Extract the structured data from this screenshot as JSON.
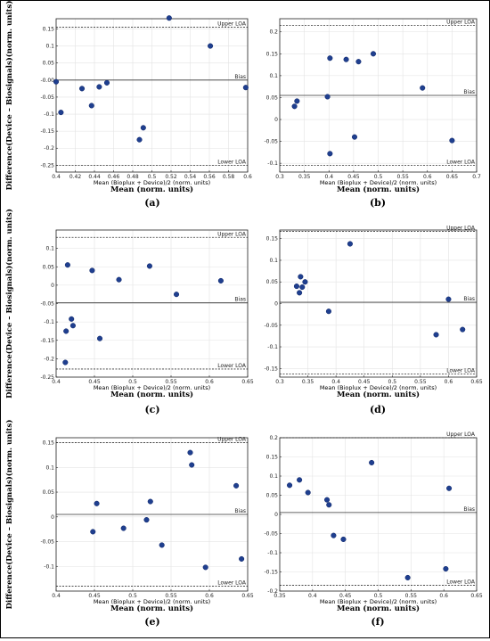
{
  "y_axis_title": "Difference(Device – Biosignals)(norm. units)",
  "x_axis_subtitle": "Mean (Bioplux + Device)/2 (norm. units)",
  "x_axis_title": "Mean (norm. units)",
  "ref_labels": {
    "upper": "Upper LOA",
    "bias": "Bias",
    "lower": "Lower LOA"
  },
  "chart_data": [
    {
      "type": "scatter",
      "panel": "(a)",
      "xlim": [
        0.4,
        0.6
      ],
      "ylim": [
        -0.27,
        0.18
      ],
      "xticks": [
        0.4,
        0.42,
        0.44,
        0.46,
        0.48,
        0.5,
        0.52,
        0.54,
        0.56,
        0.58,
        0.6
      ],
      "xtick_labels": [
        "0.4",
        "0.42",
        "0.44",
        "0.46",
        "0.48",
        "0.5",
        "0.52",
        "0.54",
        "0.56",
        "0.58",
        "0.6"
      ],
      "yticks": [
        -0.25,
        -0.2,
        -0.15,
        -0.1,
        -0.05,
        0.0,
        0.05,
        0.1,
        0.15
      ],
      "ytick_labels": [
        "-0.25",
        "-0.2",
        "-0.15",
        "-0.1",
        "-0.05",
        "-0.00",
        "0.05",
        "0.1",
        "0.15"
      ],
      "upper_loa": 0.155,
      "bias": 0.0,
      "lower_loa": -0.25,
      "grid": true,
      "x": [
        0.4,
        0.405,
        0.427,
        0.437,
        0.445,
        0.453,
        0.487,
        0.491,
        0.518,
        0.561,
        0.598
      ],
      "y": [
        -0.005,
        -0.095,
        -0.025,
        -0.075,
        -0.02,
        -0.008,
        -0.175,
        -0.14,
        0.182,
        0.1,
        -0.022
      ]
    },
    {
      "type": "scatter",
      "panel": "(b)",
      "xlim": [
        0.3,
        0.7
      ],
      "ylim": [
        -0.12,
        0.23
      ],
      "xticks": [
        0.3,
        0.35,
        0.4,
        0.45,
        0.5,
        0.55,
        0.6,
        0.65,
        0.7
      ],
      "xtick_labels": [
        "0.3",
        "0.35",
        "0.4",
        "0.45",
        "0.5",
        "0.55",
        "0.6",
        "0.65",
        "0.7"
      ],
      "yticks": [
        -0.1,
        -0.05,
        0.0,
        0.05,
        0.1,
        0.15,
        0.2
      ],
      "ytick_labels": [
        "-0.1",
        "-0.05",
        "0",
        "0.05",
        "0.1",
        "0.15",
        "0.2"
      ],
      "upper_loa": 0.215,
      "bias": 0.055,
      "lower_loa": -0.105,
      "grid": true,
      "x": [
        0.33,
        0.335,
        0.397,
        0.402,
        0.402,
        0.435,
        0.452,
        0.46,
        0.49,
        0.59,
        0.65
      ],
      "y": [
        0.03,
        0.042,
        0.052,
        0.14,
        -0.078,
        0.137,
        -0.04,
        0.132,
        0.15,
        0.072,
        -0.048
      ]
    },
    {
      "type": "scatter",
      "panel": "(c)",
      "xlim": [
        0.4,
        0.65
      ],
      "ylim": [
        -0.25,
        0.15
      ],
      "xticks": [
        0.4,
        0.45,
        0.5,
        0.55,
        0.6,
        0.65
      ],
      "xtick_labels": [
        "0.4",
        "0.45",
        "0.5",
        "0.55",
        "0.6",
        "0.65"
      ],
      "yticks": [
        -0.25,
        -0.2,
        -0.15,
        -0.1,
        -0.05,
        0.0,
        0.05,
        0.1
      ],
      "ytick_labels": [
        "-0.25",
        "-0.2",
        "-0.15",
        "-0.1",
        "-0.05",
        "0",
        "0.05",
        "0.1"
      ],
      "upper_loa": 0.13,
      "bias": -0.048,
      "lower_loa": -0.228,
      "grid": true,
      "x": [
        0.412,
        0.413,
        0.415,
        0.42,
        0.422,
        0.447,
        0.457,
        0.482,
        0.522,
        0.557,
        0.615
      ],
      "y": [
        -0.21,
        -0.125,
        0.055,
        -0.092,
        -0.11,
        0.04,
        -0.145,
        0.015,
        0.052,
        -0.025,
        0.012
      ]
    },
    {
      "type": "scatter",
      "panel": "(d)",
      "xlim": [
        0.3,
        0.65
      ],
      "ylim": [
        -0.17,
        0.17
      ],
      "xticks": [
        0.3,
        0.35,
        0.4,
        0.45,
        0.5,
        0.55,
        0.6,
        0.65
      ],
      "xtick_labels": [
        "0.3",
        "0.35",
        "0.4",
        "0.45",
        "0.5",
        "0.55",
        "0.6",
        "0.65"
      ],
      "yticks": [
        -0.15,
        -0.1,
        -0.05,
        0.0,
        0.05,
        0.1,
        0.15
      ],
      "ytick_labels": [
        "-0.15",
        "-0.1",
        "-0.05",
        "0",
        "0.05",
        "0.1",
        "0.15"
      ],
      "upper_loa": 0.167,
      "bias": 0.003,
      "lower_loa": -0.163,
      "grid": true,
      "x": [
        0.33,
        0.335,
        0.337,
        0.34,
        0.345,
        0.387,
        0.425,
        0.578,
        0.6,
        0.625
      ],
      "y": [
        0.04,
        0.025,
        0.062,
        0.038,
        0.05,
        -0.018,
        0.138,
        -0.072,
        0.01,
        -0.06
      ]
    },
    {
      "type": "scatter",
      "panel": "(e)",
      "xlim": [
        0.4,
        0.65
      ],
      "ylim": [
        -0.15,
        0.16
      ],
      "xticks": [
        0.4,
        0.45,
        0.5,
        0.55,
        0.6,
        0.65
      ],
      "xtick_labels": [
        "0.4",
        "0.45",
        "0.5",
        "0.55",
        "0.6",
        "0.65"
      ],
      "yticks": [
        -0.1,
        -0.05,
        0.0,
        0.05,
        0.1,
        0.15
      ],
      "ytick_labels": [
        "-0.1",
        "-0.05",
        "0",
        "0.05",
        "0.1",
        "0.15"
      ],
      "upper_loa": 0.15,
      "bias": 0.005,
      "lower_loa": -0.14,
      "grid": true,
      "x": [
        0.448,
        0.453,
        0.488,
        0.518,
        0.523,
        0.538,
        0.575,
        0.577,
        0.595,
        0.635,
        0.642
      ],
      "y": [
        -0.03,
        0.027,
        -0.023,
        -0.006,
        0.031,
        -0.057,
        0.13,
        0.105,
        -0.102,
        0.063,
        -0.085
      ]
    },
    {
      "type": "scatter",
      "panel": "(f)",
      "xlim": [
        0.35,
        0.65
      ],
      "ylim": [
        -0.2,
        0.2
      ],
      "xticks": [
        0.35,
        0.4,
        0.45,
        0.5,
        0.55,
        0.6,
        0.65
      ],
      "xtick_labels": [
        "0.35",
        "0.4",
        "0.45",
        "0.5",
        "0.55",
        "0.6",
        "0.65"
      ],
      "yticks": [
        -0.2,
        -0.15,
        -0.1,
        -0.05,
        0.0,
        0.05,
        0.1,
        0.15,
        0.2
      ],
      "ytick_labels": [
        "-0.2",
        "-0.15",
        "-0.1",
        "-0.05",
        "0",
        "0.05",
        "0.1",
        "0.15",
        "0.2"
      ],
      "upper_loa": 0.2,
      "bias": 0.005,
      "lower_loa": -0.185,
      "grid": true,
      "x": [
        0.365,
        0.38,
        0.393,
        0.422,
        0.425,
        0.432,
        0.447,
        0.49,
        0.545,
        0.603,
        0.608
      ],
      "y": [
        0.076,
        0.09,
        0.057,
        0.038,
        0.025,
        -0.055,
        -0.065,
        0.135,
        -0.165,
        -0.142,
        0.068
      ]
    }
  ]
}
